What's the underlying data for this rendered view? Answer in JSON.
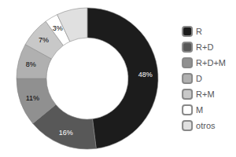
{
  "chart_data": {
    "type": "pie",
    "categories": [
      "R",
      "R+D",
      "R+D+M",
      "D",
      "R+M",
      "M",
      "otros"
    ],
    "values": [
      48,
      16,
      11,
      8,
      7,
      3,
      7
    ],
    "value_labels": [
      "48%",
      "16%",
      "11%",
      "8%",
      "7%",
      "3%",
      null
    ],
    "colors": [
      "#1c1c1c",
      "#585858",
      "#909090",
      "#b0b0b0",
      "#c8c8c8",
      "#ffffff",
      "#e0e0e0"
    ],
    "data_labels": true,
    "legend": "right"
  }
}
